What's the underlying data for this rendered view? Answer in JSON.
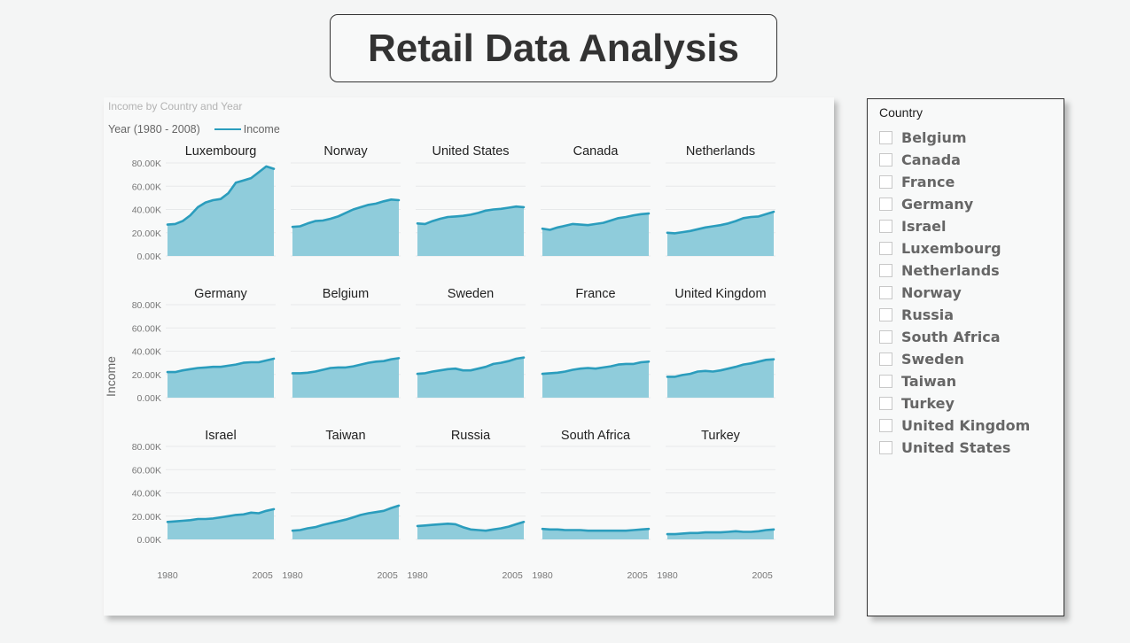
{
  "page": {
    "title": "Retail Data Analysis"
  },
  "visual": {
    "header": "Income by Country and Year",
    "legend_title": "Year (1980 - 2008)",
    "legend_item": "Income",
    "ylabel": "Income",
    "line_color": "#2b9dbd",
    "area_color": "#8fccdb"
  },
  "slicer": {
    "title": "Country",
    "items": [
      "Belgium",
      "Canada",
      "France",
      "Germany",
      "Israel",
      "Luxembourg",
      "Netherlands",
      "Norway",
      "Russia",
      "South Africa",
      "Sweden",
      "Taiwan",
      "Turkey",
      "United Kingdom",
      "United States"
    ]
  },
  "chart_data": {
    "type": "area",
    "title": "Income by Country and Year",
    "xlabel": "",
    "ylabel": "Income",
    "x_range": [
      1980,
      2008
    ],
    "x_ticks": [
      "1980",
      "2005"
    ],
    "x_tick_values": [
      1980,
      2005
    ],
    "ylim": [
      0,
      80000
    ],
    "y_ticks": [
      "0.00K",
      "20.00K",
      "40.00K",
      "60.00K",
      "80.00K"
    ],
    "y_tick_values": [
      0,
      20000,
      40000,
      60000,
      80000
    ],
    "grid": true,
    "legend": "top-left",
    "panels": [
      {
        "name": "Luxembourg",
        "points": [
          [
            1980,
            27000
          ],
          [
            1982,
            27500
          ],
          [
            1984,
            30000
          ],
          [
            1986,
            35000
          ],
          [
            1988,
            42000
          ],
          [
            1990,
            46000
          ],
          [
            1992,
            48000
          ],
          [
            1994,
            49000
          ],
          [
            1996,
            54000
          ],
          [
            1998,
            63000
          ],
          [
            2000,
            65000
          ],
          [
            2002,
            67000
          ],
          [
            2004,
            72000
          ],
          [
            2006,
            77000
          ],
          [
            2008,
            75000
          ]
        ]
      },
      {
        "name": "Norway",
        "points": [
          [
            1980,
            25000
          ],
          [
            1982,
            25500
          ],
          [
            1984,
            28000
          ],
          [
            1986,
            30000
          ],
          [
            1988,
            30500
          ],
          [
            1990,
            32000
          ],
          [
            1992,
            34000
          ],
          [
            1994,
            37000
          ],
          [
            1996,
            40000
          ],
          [
            1998,
            42000
          ],
          [
            2000,
            44000
          ],
          [
            2002,
            45000
          ],
          [
            2004,
            47000
          ],
          [
            2006,
            48500
          ],
          [
            2008,
            48000
          ]
        ]
      },
      {
        "name": "United States",
        "points": [
          [
            1980,
            28000
          ],
          [
            1982,
            27500
          ],
          [
            1984,
            30000
          ],
          [
            1986,
            32000
          ],
          [
            1988,
            33500
          ],
          [
            1990,
            34000
          ],
          [
            1992,
            34500
          ],
          [
            1994,
            35500
          ],
          [
            1996,
            37000
          ],
          [
            1998,
            39000
          ],
          [
            2000,
            40000
          ],
          [
            2002,
            40500
          ],
          [
            2004,
            41500
          ],
          [
            2006,
            42500
          ],
          [
            2008,
            42000
          ]
        ]
      },
      {
        "name": "Canada",
        "points": [
          [
            1980,
            23500
          ],
          [
            1982,
            22500
          ],
          [
            1984,
            24500
          ],
          [
            1986,
            26000
          ],
          [
            1988,
            27500
          ],
          [
            1990,
            27000
          ],
          [
            1992,
            26500
          ],
          [
            1994,
            27500
          ],
          [
            1996,
            28500
          ],
          [
            1998,
            30500
          ],
          [
            2000,
            32500
          ],
          [
            2002,
            33500
          ],
          [
            2004,
            35000
          ],
          [
            2006,
            36000
          ],
          [
            2008,
            36500
          ]
        ]
      },
      {
        "name": "Netherlands",
        "points": [
          [
            1980,
            20000
          ],
          [
            1982,
            19500
          ],
          [
            1984,
            20500
          ],
          [
            1986,
            21500
          ],
          [
            1988,
            23000
          ],
          [
            1990,
            24500
          ],
          [
            1992,
            25500
          ],
          [
            1994,
            26500
          ],
          [
            1996,
            28000
          ],
          [
            1998,
            30000
          ],
          [
            2000,
            32500
          ],
          [
            2002,
            33500
          ],
          [
            2004,
            34000
          ],
          [
            2006,
            36000
          ],
          [
            2008,
            38000
          ]
        ]
      },
      {
        "name": "Germany",
        "points": [
          [
            1980,
            22000
          ],
          [
            1982,
            22000
          ],
          [
            1984,
            23500
          ],
          [
            1986,
            24500
          ],
          [
            1988,
            25500
          ],
          [
            1990,
            26000
          ],
          [
            1992,
            26500
          ],
          [
            1994,
            26500
          ],
          [
            1996,
            27500
          ],
          [
            1998,
            28500
          ],
          [
            2000,
            30000
          ],
          [
            2002,
            30500
          ],
          [
            2004,
            30500
          ],
          [
            2006,
            32000
          ],
          [
            2008,
            33500
          ]
        ]
      },
      {
        "name": "Belgium",
        "points": [
          [
            1980,
            21000
          ],
          [
            1982,
            21000
          ],
          [
            1984,
            21500
          ],
          [
            1986,
            22500
          ],
          [
            1988,
            24000
          ],
          [
            1990,
            25500
          ],
          [
            1992,
            26000
          ],
          [
            1994,
            26000
          ],
          [
            1996,
            27000
          ],
          [
            1998,
            28500
          ],
          [
            2000,
            30000
          ],
          [
            2002,
            31000
          ],
          [
            2004,
            31500
          ],
          [
            2006,
            33000
          ],
          [
            2008,
            34000
          ]
        ]
      },
      {
        "name": "Sweden",
        "points": [
          [
            1980,
            20500
          ],
          [
            1982,
            21000
          ],
          [
            1984,
            22500
          ],
          [
            1986,
            23500
          ],
          [
            1988,
            24500
          ],
          [
            1990,
            25000
          ],
          [
            1992,
            23500
          ],
          [
            1994,
            23500
          ],
          [
            1996,
            25000
          ],
          [
            1998,
            26500
          ],
          [
            2000,
            29000
          ],
          [
            2002,
            30000
          ],
          [
            2004,
            31500
          ],
          [
            2006,
            33500
          ],
          [
            2008,
            34500
          ]
        ]
      },
      {
        "name": "France",
        "points": [
          [
            1980,
            20500
          ],
          [
            1982,
            21000
          ],
          [
            1984,
            21500
          ],
          [
            1986,
            22500
          ],
          [
            1988,
            24000
          ],
          [
            1990,
            25000
          ],
          [
            1992,
            25500
          ],
          [
            1994,
            25000
          ],
          [
            1996,
            26000
          ],
          [
            1998,
            27000
          ],
          [
            2000,
            28500
          ],
          [
            2002,
            29000
          ],
          [
            2004,
            29000
          ],
          [
            2006,
            30500
          ],
          [
            2008,
            31000
          ]
        ]
      },
      {
        "name": "United Kingdom",
        "points": [
          [
            1980,
            18000
          ],
          [
            1982,
            18000
          ],
          [
            1984,
            19500
          ],
          [
            1986,
            20500
          ],
          [
            1988,
            22500
          ],
          [
            1990,
            23000
          ],
          [
            1992,
            22500
          ],
          [
            1994,
            23500
          ],
          [
            1996,
            25000
          ],
          [
            1998,
            26500
          ],
          [
            2000,
            28500
          ],
          [
            2002,
            29500
          ],
          [
            2004,
            31000
          ],
          [
            2006,
            32500
          ],
          [
            2008,
            33000
          ]
        ]
      },
      {
        "name": "Israel",
        "points": [
          [
            1980,
            15000
          ],
          [
            1982,
            15500
          ],
          [
            1984,
            16000
          ],
          [
            1986,
            16500
          ],
          [
            1988,
            17500
          ],
          [
            1990,
            17500
          ],
          [
            1992,
            18000
          ],
          [
            1994,
            19000
          ],
          [
            1996,
            20000
          ],
          [
            1998,
            21000
          ],
          [
            2000,
            21500
          ],
          [
            2002,
            23000
          ],
          [
            2004,
            22500
          ],
          [
            2006,
            24500
          ],
          [
            2008,
            26000
          ]
        ]
      },
      {
        "name": "Taiwan",
        "points": [
          [
            1980,
            7500
          ],
          [
            1982,
            8000
          ],
          [
            1984,
            9500
          ],
          [
            1986,
            10500
          ],
          [
            1988,
            12500
          ],
          [
            1990,
            14000
          ],
          [
            1992,
            15500
          ],
          [
            1994,
            17000
          ],
          [
            1996,
            19000
          ],
          [
            1998,
            21000
          ],
          [
            2000,
            22500
          ],
          [
            2002,
            23500
          ],
          [
            2004,
            24500
          ],
          [
            2006,
            27000
          ],
          [
            2008,
            29000
          ]
        ]
      },
      {
        "name": "Russia",
        "points": [
          [
            1980,
            11500
          ],
          [
            1982,
            12000
          ],
          [
            1984,
            12500
          ],
          [
            1986,
            13000
          ],
          [
            1988,
            13500
          ],
          [
            1990,
            13000
          ],
          [
            1992,
            10500
          ],
          [
            1994,
            8500
          ],
          [
            1996,
            8000
          ],
          [
            1998,
            7500
          ],
          [
            2000,
            8500
          ],
          [
            2002,
            9500
          ],
          [
            2004,
            11000
          ],
          [
            2006,
            13000
          ],
          [
            2008,
            15000
          ]
        ]
      },
      {
        "name": "South Africa",
        "points": [
          [
            1980,
            9000
          ],
          [
            1982,
            8500
          ],
          [
            1984,
            8500
          ],
          [
            1986,
            8000
          ],
          [
            1988,
            8000
          ],
          [
            1990,
            8000
          ],
          [
            1992,
            7500
          ],
          [
            1994,
            7500
          ],
          [
            1996,
            7500
          ],
          [
            1998,
            7500
          ],
          [
            2000,
            7500
          ],
          [
            2002,
            7500
          ],
          [
            2004,
            8000
          ],
          [
            2006,
            8500
          ],
          [
            2008,
            9000
          ]
        ]
      },
      {
        "name": "Turkey",
        "points": [
          [
            1980,
            4500
          ],
          [
            1982,
            4500
          ],
          [
            1984,
            5000
          ],
          [
            1986,
            5500
          ],
          [
            1988,
            5500
          ],
          [
            1990,
            6000
          ],
          [
            1992,
            6000
          ],
          [
            1994,
            6000
          ],
          [
            1996,
            6500
          ],
          [
            1998,
            7000
          ],
          [
            2000,
            6500
          ],
          [
            2002,
            6500
          ],
          [
            2004,
            7000
          ],
          [
            2006,
            8000
          ],
          [
            2008,
            8500
          ]
        ]
      }
    ]
  }
}
